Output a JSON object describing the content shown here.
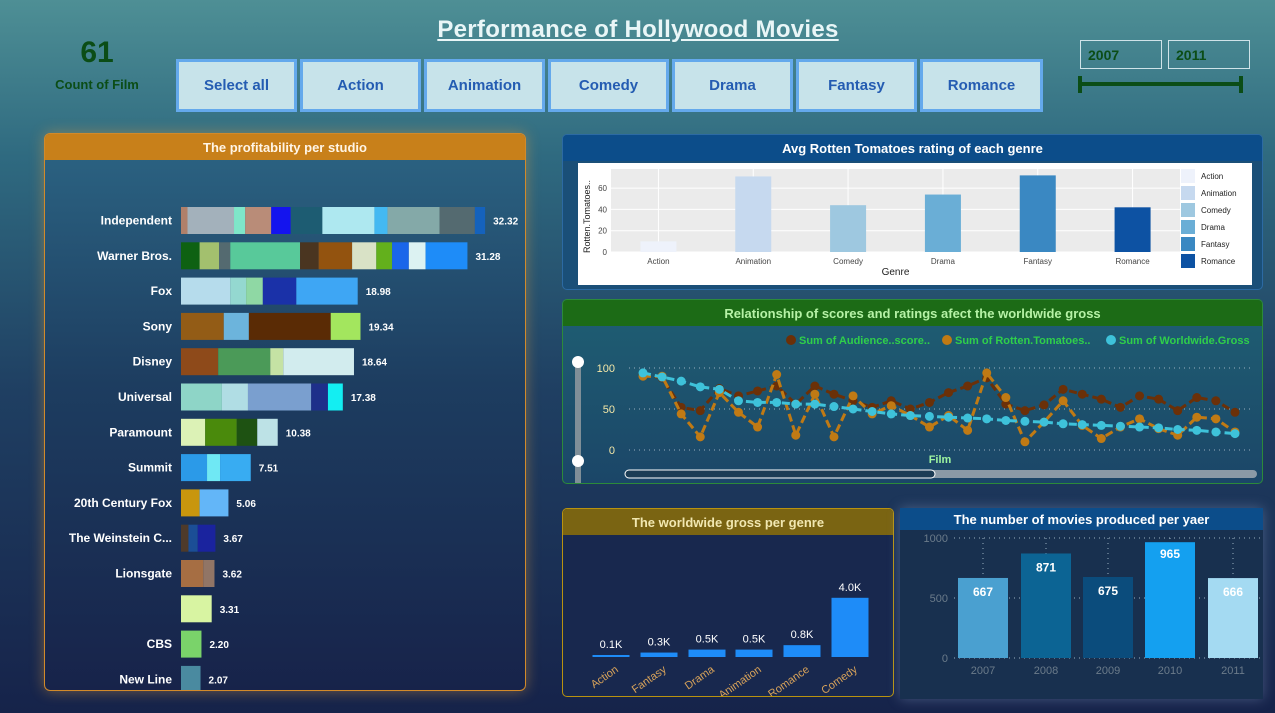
{
  "header": {
    "title": "Performance of Hollywood Movies",
    "kpi_value": "61",
    "kpi_label": "Count of Film",
    "genre_buttons": [
      "Select all",
      "Action",
      "Animation",
      "Comedy",
      "Drama",
      "Fantasy",
      "Romance"
    ],
    "year_from": "2007",
    "year_to": "2011"
  },
  "chart_data": [
    {
      "type": "bar",
      "title": "The profitability per studio",
      "orientation": "horizontal-stacked",
      "categories": [
        "Independent",
        "Warner Bros.",
        "Fox",
        "Sony",
        "Disney",
        "Universal",
        "Paramount",
        "Summit",
        "20th Century Fox",
        "The Weinstein C...",
        "Lionsgate",
        "",
        "CBS",
        "New Line"
      ],
      "totals": [
        32.32,
        31.28,
        18.98,
        19.34,
        18.64,
        17.38,
        10.38,
        7.51,
        5.06,
        3.67,
        3.62,
        3.31,
        2.2,
        2.07
      ],
      "total_labels": [
        "32.32",
        "31.28",
        "18.98",
        "19.34",
        "18.64",
        "17.38",
        "10.38",
        "7.51",
        "5.06",
        "3.67",
        "3.62",
        "3.31",
        "2.20",
        "2.07"
      ],
      "segments": [
        [
          {
            "v": 0.7,
            "c": "#b0806a"
          },
          {
            "v": 5.0,
            "c": "#a3b1bb"
          },
          {
            "v": 1.2,
            "c": "#7fe6c9"
          },
          {
            "v": 2.8,
            "c": "#b98c78"
          },
          {
            "v": 2.1,
            "c": "#1414ee"
          },
          {
            "v": 3.4,
            "c": "#1d5c72"
          },
          {
            "v": 5.6,
            "c": "#aee8f0"
          },
          {
            "v": 1.4,
            "c": "#43b9f2"
          },
          {
            "v": 5.6,
            "c": "#84a9a8"
          },
          {
            "v": 3.8,
            "c": "#546a70"
          },
          {
            "v": 1.1,
            "c": "#1562bc"
          }
        ],
        [
          {
            "v": 2.0,
            "c": "#0e6112"
          },
          {
            "v": 2.1,
            "c": "#a3c06e"
          },
          {
            "v": 1.2,
            "c": "#546a70"
          },
          {
            "v": 7.5,
            "c": "#58c99a"
          },
          {
            "v": 2.0,
            "c": "#4a3520"
          },
          {
            "v": 3.6,
            "c": "#93530f"
          },
          {
            "v": 2.6,
            "c": "#d9e2c6"
          },
          {
            "v": 1.7,
            "c": "#63b01c"
          },
          {
            "v": 1.8,
            "c": "#1a66ea"
          },
          {
            "v": 1.8,
            "c": "#dcf2f2"
          },
          {
            "v": 4.5,
            "c": "#1e8cf8"
          }
        ],
        [
          {
            "v": 5.3,
            "c": "#b6dcec"
          },
          {
            "v": 1.7,
            "c": "#94d8d0"
          },
          {
            "v": 1.8,
            "c": "#8fd8a4"
          },
          {
            "v": 3.6,
            "c": "#1a31a8"
          },
          {
            "v": 6.6,
            "c": "#3ea6f4"
          }
        ],
        [
          {
            "v": 4.6,
            "c": "#935c16"
          },
          {
            "v": 2.7,
            "c": "#6cb4dc"
          },
          {
            "v": 8.8,
            "c": "#5a2b05"
          },
          {
            "v": 3.2,
            "c": "#a3e65e"
          }
        ],
        [
          {
            "v": 4.0,
            "c": "#8e4a1a"
          },
          {
            "v": 5.6,
            "c": "#4b9a58"
          },
          {
            "v": 1.4,
            "c": "#c5e2a4"
          },
          {
            "v": 7.6,
            "c": "#d2ecee"
          }
        ],
        [
          {
            "v": 4.4,
            "c": "#8ed5c7"
          },
          {
            "v": 2.8,
            "c": "#b0dde4"
          },
          {
            "v": 6.8,
            "c": "#7a9fcf"
          },
          {
            "v": 1.8,
            "c": "#1e2f8a"
          },
          {
            "v": 1.6,
            "c": "#13eef2"
          }
        ],
        [
          {
            "v": 2.6,
            "c": "#dcf2b6"
          },
          {
            "v": 3.4,
            "c": "#4a8a0c"
          },
          {
            "v": 2.2,
            "c": "#1e5212"
          },
          {
            "v": 2.2,
            "c": "#bde2e6"
          }
        ],
        [
          {
            "v": 2.8,
            "c": "#2b9ae8"
          },
          {
            "v": 1.4,
            "c": "#6fe8f4"
          },
          {
            "v": 3.3,
            "c": "#38acf2"
          }
        ],
        [
          {
            "v": 2.0,
            "c": "#c8960e"
          },
          {
            "v": 3.1,
            "c": "#63b6f8"
          }
        ],
        [
          {
            "v": 0.8,
            "c": "#4e3a2a"
          },
          {
            "v": 1.0,
            "c": "#1b4e96"
          },
          {
            "v": 1.9,
            "c": "#1a239e"
          }
        ],
        [
          {
            "v": 2.4,
            "c": "#a66e43"
          },
          {
            "v": 1.2,
            "c": "#917566"
          }
        ],
        [
          {
            "v": 3.3,
            "c": "#d8f4a2"
          }
        ],
        [
          {
            "v": 2.2,
            "c": "#7ad36a"
          }
        ],
        [
          {
            "v": 2.1,
            "c": "#4a8aa0"
          }
        ]
      ]
    },
    {
      "type": "bar",
      "title": "Avg Rotten Tomatoes rating of each genre",
      "xlabel": "Genre",
      "ylabel": "Rotten.Tomatoes..",
      "categories": [
        "Action",
        "Animation",
        "Comedy",
        "Drama",
        "Fantasy",
        "Romance"
      ],
      "values": [
        10,
        71,
        44,
        54,
        72,
        42
      ],
      "yticks": [
        "0",
        "20",
        "40",
        "60"
      ],
      "ylim": [
        0,
        78
      ],
      "colors": [
        "#eef2fb",
        "#c6d9ef",
        "#9ec8e0",
        "#6aaed6",
        "#3a88c2",
        "#0d52a3"
      ],
      "legend": [
        "Action",
        "Animation",
        "Comedy",
        "Drama",
        "Fantasy",
        "Romance"
      ],
      "legend_position": "right",
      "grid": true
    },
    {
      "type": "line",
      "title": "Relationship of scores and ratings afect the worldwide gross",
      "xlabel": "Film",
      "yticks": [
        "100",
        "50",
        "0"
      ],
      "ylim": [
        0,
        100
      ],
      "series": [
        {
          "name": "Sum of Audience..score..",
          "color": "#6b3008",
          "values": [
            92,
            88,
            52,
            48,
            75,
            66,
            72,
            78,
            56,
            78,
            68,
            60,
            52,
            60,
            50,
            58,
            70,
            78,
            88,
            56,
            48,
            55,
            74,
            68,
            62,
            52,
            66,
            62,
            48,
            64,
            60,
            46
          ]
        },
        {
          "name": "Sum of Rotten.Tomatoes..",
          "color": "#c07a14",
          "values": [
            90,
            90,
            44,
            16,
            70,
            46,
            28,
            92,
            18,
            68,
            16,
            66,
            44,
            54,
            42,
            28,
            42,
            24,
            94,
            64,
            10,
            34,
            60,
            30,
            14,
            28,
            38,
            26,
            18,
            40,
            38,
            22
          ]
        },
        {
          "name": "Sum of Worldwide.Gross",
          "color": "#3ec2da",
          "values": [
            94,
            89,
            84,
            77,
            74,
            60,
            58,
            58,
            56,
            56,
            53,
            50,
            47,
            44,
            42,
            41,
            40,
            39,
            38,
            36,
            35,
            34,
            32,
            31,
            30,
            29,
            28,
            27,
            25,
            24,
            22,
            20
          ]
        }
      ]
    },
    {
      "type": "bar",
      "title": "The worldwide gross per genre",
      "categories": [
        "Action",
        "Fantasy",
        "Drama",
        "Animation",
        "Romance",
        "Comedy"
      ],
      "values": [
        0.1,
        0.3,
        0.5,
        0.5,
        0.8,
        4.0
      ],
      "value_labels": [
        "0.1K",
        "0.3K",
        "0.5K",
        "0.5K",
        "0.8K",
        "4.0K"
      ],
      "color": "#1e8cf8"
    },
    {
      "type": "bar",
      "title": "The number of movies produced per yaer",
      "categories": [
        "2007",
        "2008",
        "2009",
        "2010",
        "2011"
      ],
      "values": [
        667,
        871,
        675,
        965,
        666
      ],
      "value_labels": [
        "667",
        "871",
        "675",
        "965",
        "666"
      ],
      "yticks": [
        "1000",
        "500",
        "0"
      ],
      "ylim": [
        0,
        1000
      ],
      "colors": [
        "#4aa0d0",
        "#0c6494",
        "#0b4c7c",
        "#14a0f0",
        "#a4daf2"
      ]
    }
  ]
}
